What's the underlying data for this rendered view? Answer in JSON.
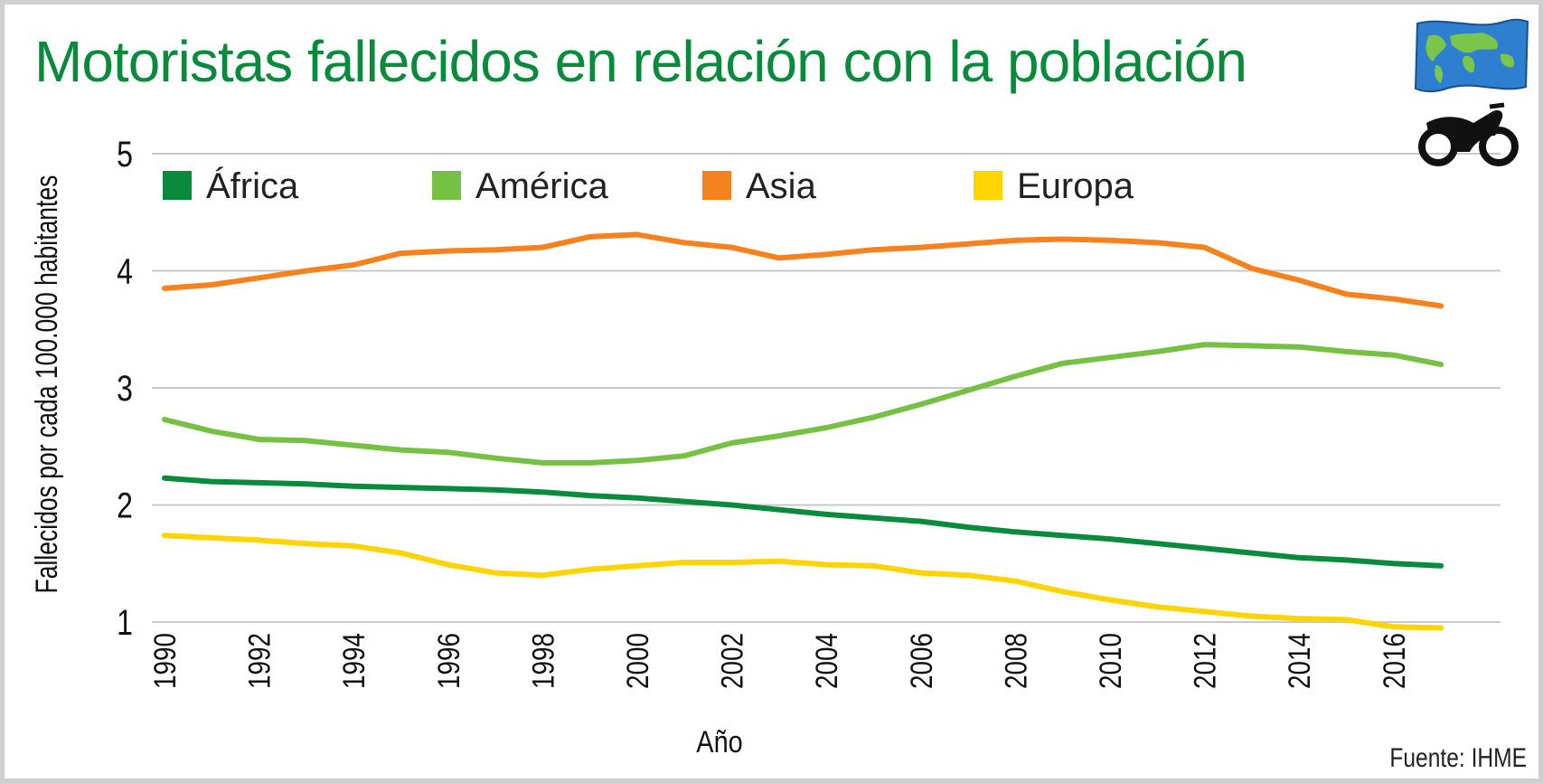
{
  "title": "Motoristas fallecidos en relación con la población",
  "source": "Fuente: IHME",
  "icons": [
    "world-flag-icon",
    "motorcycle-icon"
  ],
  "colors": {
    "title": "#0a8a3c",
    "africa": "#0a8a3c",
    "america": "#76c043",
    "asia": "#f5821f",
    "europa": "#ffd400",
    "grid": "#c8c8c8"
  },
  "chart_data": {
    "type": "line",
    "title": "Motoristas fallecidos en relación con la población",
    "xlabel": "Año",
    "ylabel": "Fallecidos por cada 100.000 habitantes",
    "x": [
      1990,
      1991,
      1992,
      1993,
      1994,
      1995,
      1996,
      1997,
      1998,
      1999,
      2000,
      2001,
      2002,
      2003,
      2004,
      2005,
      2006,
      2007,
      2008,
      2009,
      2010,
      2011,
      2012,
      2013,
      2014,
      2015,
      2016,
      2017
    ],
    "x_tick_labels": [
      "1990",
      "1992",
      "1994",
      "1996",
      "1998",
      "2000",
      "2002",
      "2004",
      "2006",
      "2008",
      "2010",
      "2012",
      "2014",
      "2016"
    ],
    "y_tick_labels": [
      "1",
      "2",
      "3",
      "4",
      "5"
    ],
    "ylim": [
      1,
      5
    ],
    "grid": true,
    "legend_position": "top",
    "series": [
      {
        "name": "África",
        "color": "#0a8a3c",
        "values": [
          2.23,
          2.2,
          2.19,
          2.18,
          2.16,
          2.15,
          2.14,
          2.13,
          2.11,
          2.08,
          2.06,
          2.03,
          2.0,
          1.96,
          1.92,
          1.89,
          1.86,
          1.81,
          1.77,
          1.74,
          1.71,
          1.67,
          1.63,
          1.59,
          1.55,
          1.53,
          1.5,
          1.48
        ]
      },
      {
        "name": "América",
        "color": "#76c043",
        "values": [
          2.73,
          2.63,
          2.56,
          2.55,
          2.51,
          2.47,
          2.45,
          2.4,
          2.36,
          2.36,
          2.38,
          2.42,
          2.53,
          2.59,
          2.66,
          2.75,
          2.86,
          2.98,
          3.1,
          3.21,
          3.26,
          3.31,
          3.37,
          3.36,
          3.35,
          3.31,
          3.28,
          3.2
        ]
      },
      {
        "name": "Asia",
        "color": "#f5821f",
        "values": [
          3.85,
          3.88,
          3.94,
          4.0,
          4.05,
          4.15,
          4.17,
          4.18,
          4.2,
          4.29,
          4.31,
          4.24,
          4.2,
          4.11,
          4.14,
          4.18,
          4.2,
          4.23,
          4.26,
          4.27,
          4.26,
          4.24,
          4.2,
          4.02,
          3.92,
          3.8,
          3.76,
          3.7
        ]
      },
      {
        "name": "Europa",
        "color": "#ffd400",
        "values": [
          1.74,
          1.72,
          1.7,
          1.67,
          1.65,
          1.59,
          1.49,
          1.42,
          1.4,
          1.45,
          1.48,
          1.51,
          1.51,
          1.52,
          1.49,
          1.48,
          1.42,
          1.4,
          1.35,
          1.26,
          1.19,
          1.13,
          1.09,
          1.05,
          1.03,
          1.02,
          0.96,
          0.95
        ]
      }
    ]
  }
}
